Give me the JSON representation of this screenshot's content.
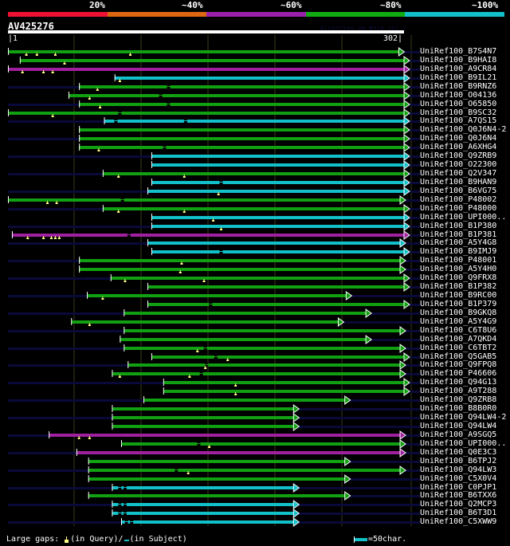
{
  "header": {
    "identity_legend": [
      {
        "label": "20%",
        "color": "#ee1133"
      },
      {
        "label": "~40%",
        "color": "#dd6611"
      },
      {
        "label": "~60%",
        "color": "#9922aa"
      },
      {
        "label": "~80%",
        "color": "#11aa11"
      },
      {
        "label": "~100%",
        "color": "#11c0c8"
      }
    ],
    "query_name": "AV425276",
    "watermark": "AlignView.pm Beta rel.7",
    "ruler_start": "|1",
    "ruler_end": "302|",
    "query_length": 302
  },
  "colors": {
    "green": "#11a011",
    "cyan": "#11c0c8",
    "magenta": "#a020a0",
    "unaligned": "#0a0a3a",
    "gap_marker": "#ffff88",
    "grid": "#3a3a1a"
  },
  "hits": [
    {
      "name": "UniRef100_B7S4N7",
      "color": "green",
      "start": 1,
      "end": 298,
      "ext_left": false,
      "marks": [
        15,
        23,
        37,
        94
      ]
    },
    {
      "name": "UniRef100_B9HAI8",
      "color": "green",
      "start": 10,
      "end": 302,
      "ext_left": false,
      "marks": [
        44
      ]
    },
    {
      "name": "UniRef100_A9CR84",
      "color": "magenta",
      "start": 1,
      "end": 302,
      "ext_left": false,
      "marks": [
        12,
        28,
        35
      ]
    },
    {
      "name": "UniRef100_B9IL21",
      "color": "cyan",
      "start": 82,
      "end": 302,
      "ext_left": false,
      "marks": [
        86
      ]
    },
    {
      "name": "UniRef100_B9RNZ6",
      "color": "green",
      "start": 55,
      "end": 302,
      "ext_left": true,
      "gaps": [
        123
      ],
      "marks": [
        69
      ]
    },
    {
      "name": "UniRef100_O04136",
      "color": "green",
      "start": 47,
      "end": 302,
      "ext_left": false,
      "gaps": [
        117
      ],
      "marks": [
        63
      ]
    },
    {
      "name": "UniRef100_O65850",
      "color": "green",
      "start": 55,
      "end": 302,
      "ext_left": true,
      "gaps": [
        123
      ],
      "marks": [
        71
      ]
    },
    {
      "name": "UniRef100_B9SC32",
      "color": "green",
      "start": 1,
      "end": 302,
      "ext_left": false,
      "gaps": [
        86
      ],
      "marks": [
        35
      ]
    },
    {
      "name": "UniRef100_A7QS15",
      "color": "cyan",
      "start": 74,
      "end": 302,
      "ext_left": true,
      "gaps": [
        83,
        136
      ]
    },
    {
      "name": "UniRef100_Q0J6N4-2",
      "color": "green",
      "start": 55,
      "end": 302,
      "ext_left": false
    },
    {
      "name": "UniRef100_Q0J6N4",
      "color": "green",
      "start": 55,
      "end": 302,
      "ext_left": true
    },
    {
      "name": "UniRef100_A6XHG4",
      "color": "green",
      "start": 55,
      "end": 302,
      "ext_left": false,
      "gaps": [
        120
      ],
      "marks": [
        70
      ]
    },
    {
      "name": "UniRef100_Q9ZRB9",
      "color": "cyan",
      "start": 110,
      "end": 302,
      "ext_left": true
    },
    {
      "name": "UniRef100_O22300",
      "color": "cyan",
      "start": 110,
      "end": 302,
      "ext_left": false
    },
    {
      "name": "UniRef100_Q2V347",
      "color": "green",
      "start": 73,
      "end": 302,
      "ext_left": true,
      "marks": [
        85,
        135
      ]
    },
    {
      "name": "UniRef100_B9HAN9",
      "color": "cyan",
      "start": 110,
      "end": 302,
      "ext_left": false,
      "gaps": [
        163
      ]
    },
    {
      "name": "UniRef100_B6VG75",
      "color": "cyan",
      "start": 107,
      "end": 302,
      "ext_left": true,
      "marks": [
        161
      ]
    },
    {
      "name": "UniRef100_P48002",
      "color": "green",
      "start": 1,
      "end": 299,
      "ext_left": false,
      "gaps": [
        88
      ],
      "marks": [
        31,
        38
      ]
    },
    {
      "name": "UniRef100_P48000",
      "color": "green",
      "start": 73,
      "end": 302,
      "ext_left": true,
      "marks": [
        85,
        135
      ]
    },
    {
      "name": "UniRef100_UPI000..",
      "color": "cyan",
      "start": 110,
      "end": 302,
      "ext_left": false,
      "marks": [
        157
      ]
    },
    {
      "name": "UniRef100_B1P380",
      "color": "cyan",
      "start": 110,
      "end": 302,
      "ext_left": true,
      "marks": [
        163
      ]
    },
    {
      "name": "UniRef100_B1P381",
      "color": "magenta",
      "start": 4,
      "end": 302,
      "ext_left": false,
      "gaps": [
        93
      ],
      "marks": [
        16,
        28,
        34,
        37,
        40
      ]
    },
    {
      "name": "UniRef100_A5Y4G8",
      "color": "cyan",
      "start": 107,
      "end": 299,
      "ext_left": true
    },
    {
      "name": "UniRef100_B9IMJ9",
      "color": "cyan",
      "start": 110,
      "end": 302,
      "ext_left": false,
      "gaps": [
        163
      ]
    },
    {
      "name": "UniRef100_P48001",
      "color": "green",
      "start": 55,
      "end": 299,
      "ext_left": true,
      "marks": [
        133
      ]
    },
    {
      "name": "UniRef100_A5Y4H0",
      "color": "green",
      "start": 55,
      "end": 299,
      "ext_left": false,
      "marks": [
        132
      ]
    },
    {
      "name": "UniRef100_Q9FRX8",
      "color": "green",
      "start": 79,
      "end": 302,
      "ext_left": true,
      "marks": [
        90,
        150
      ]
    },
    {
      "name": "UniRef100_B1P382",
      "color": "green",
      "start": 107,
      "end": 302,
      "ext_left": false
    },
    {
      "name": "UniRef100_B9RC00",
      "color": "green",
      "start": 61,
      "end": 258,
      "ext_left": true,
      "marks": [
        73
      ]
    },
    {
      "name": "UniRef100_B1P379",
      "color": "green",
      "start": 107,
      "end": 302,
      "ext_left": false,
      "gaps": [
        155
      ]
    },
    {
      "name": "UniRef100_B9GKQ8",
      "color": "green",
      "start": 89,
      "end": 273,
      "ext_left": true
    },
    {
      "name": "UniRef100_A5Y4G9",
      "color": "green",
      "start": 49,
      "end": 252,
      "ext_left": false,
      "marks": [
        63
      ]
    },
    {
      "name": "UniRef100_C6T8U6",
      "color": "green",
      "start": 89,
      "end": 299,
      "ext_left": true
    },
    {
      "name": "UniRef100_A7QKD4",
      "color": "green",
      "start": 86,
      "end": 273,
      "ext_left": false
    },
    {
      "name": "UniRef100_C6TBT2",
      "color": "green",
      "start": 89,
      "end": 299,
      "ext_left": true,
      "gaps": [
        151
      ],
      "marks": [
        145
      ]
    },
    {
      "name": "UniRef100_Q5GAB5",
      "color": "green",
      "start": 110,
      "end": 302,
      "ext_left": false,
      "gaps": [
        159
      ],
      "marks": [
        168
      ]
    },
    {
      "name": "UniRef100_Q9FPQ8",
      "color": "green",
      "start": 92,
      "end": 299,
      "ext_left": true,
      "gaps": [
        152
      ],
      "marks": [
        151
      ]
    },
    {
      "name": "UniRef100_P46606",
      "color": "green",
      "start": 80,
      "end": 299,
      "ext_left": false,
      "gaps": [
        148
      ],
      "marks": [
        86,
        139
      ]
    },
    {
      "name": "UniRef100_Q94G13",
      "color": "green",
      "start": 119,
      "end": 302,
      "ext_left": true,
      "marks": [
        174
      ]
    },
    {
      "name": "UniRef100_A9T288",
      "color": "green",
      "start": 119,
      "end": 302,
      "ext_left": false,
      "marks": [
        174
      ]
    },
    {
      "name": "UniRef100_Q9ZRB8",
      "color": "green",
      "start": 104,
      "end": 257,
      "ext_left": true
    },
    {
      "name": "UniRef100_B8B0R0",
      "color": "green",
      "start": 80,
      "end": 218,
      "ext_left": false
    },
    {
      "name": "UniRef100_Q94LW4-2",
      "color": "green",
      "start": 80,
      "end": 218,
      "ext_left": true
    },
    {
      "name": "UniRef100_Q94LW4",
      "color": "green",
      "start": 80,
      "end": 218,
      "ext_left": false
    },
    {
      "name": "UniRef100_A9SGQ5",
      "color": "magenta",
      "start": 32,
      "end": 299,
      "ext_left": true,
      "marks": [
        55,
        63
      ]
    },
    {
      "name": "UniRef100_UPI000..",
      "color": "green",
      "start": 87,
      "end": 299,
      "ext_left": false,
      "gaps": [
        146
      ],
      "marks": [
        154
      ]
    },
    {
      "name": "UniRef100_Q0E3C3",
      "color": "magenta",
      "start": 53,
      "end": 299,
      "ext_left": true
    },
    {
      "name": "UniRef100_B6TPJ2",
      "color": "green",
      "start": 62,
      "end": 257,
      "ext_left": false
    },
    {
      "name": "UniRef100_Q94LW3",
      "color": "green",
      "start": 62,
      "end": 299,
      "ext_left": true,
      "gaps": [
        129
      ],
      "marks": [
        138
      ]
    },
    {
      "name": "UniRef100_C5X0V4",
      "color": "green",
      "start": 62,
      "end": 257,
      "ext_left": false
    },
    {
      "name": "UniRef100_C0PJP1",
      "color": "cyan",
      "start": 80,
      "end": 218,
      "ext_left": true,
      "gaps": [
        86,
        90
      ]
    },
    {
      "name": "UniRef100_B6TXX6",
      "color": "green",
      "start": 62,
      "end": 257,
      "ext_left": false
    },
    {
      "name": "UniRef100_Q2MCP3",
      "color": "cyan",
      "start": 80,
      "end": 218,
      "ext_left": true,
      "gaps": [
        86,
        90
      ]
    },
    {
      "name": "UniRef100_B6T3D1",
      "color": "cyan",
      "start": 80,
      "end": 218,
      "ext_left": false,
      "gaps": [
        86,
        90
      ]
    },
    {
      "name": "UniRef100_C5XWW9",
      "color": "cyan",
      "start": 87,
      "end": 218,
      "ext_left": true,
      "gaps": [
        91,
        95
      ]
    }
  ],
  "footer": {
    "gaps_prefix": "Large gaps:",
    "gaps_query": "(in Query)/",
    "gaps_subject": "(in Subject)",
    "scale_label": "=50char."
  }
}
